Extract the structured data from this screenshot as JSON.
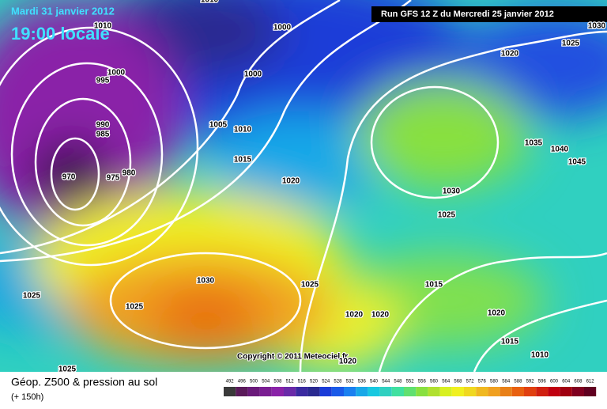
{
  "header": {
    "date": "Mardi 31 janvier 2012",
    "time": "19:00 locale",
    "run": "Run GFS 12 Z du Mercredi 25 janvier 2012",
    "copyright": "Copyright © 2011 Meteociel.fr"
  },
  "footer": {
    "title": "Géop. Z500 & pression au sol",
    "lead": "(+ 150h)"
  },
  "colorbar": {
    "labels": [
      492,
      496,
      500,
      504,
      508,
      512,
      516,
      520,
      524,
      528,
      532,
      536,
      540,
      544,
      548,
      552,
      556,
      560,
      564,
      568,
      572,
      576,
      580,
      584,
      588,
      592,
      596,
      600,
      604,
      608,
      612
    ]
  },
  "isobars": [
    1010,
    1000,
    1010,
    1000,
    995,
    1000,
    990,
    985,
    1005,
    1010,
    970,
    975,
    980,
    1015,
    1020,
    1030,
    1025,
    1035,
    1040,
    1045,
    1020,
    1025,
    1030,
    1030,
    1025,
    1015,
    1025,
    1025,
    1020,
    1020,
    1020,
    1015,
    1010,
    1025,
    1020
  ]
}
